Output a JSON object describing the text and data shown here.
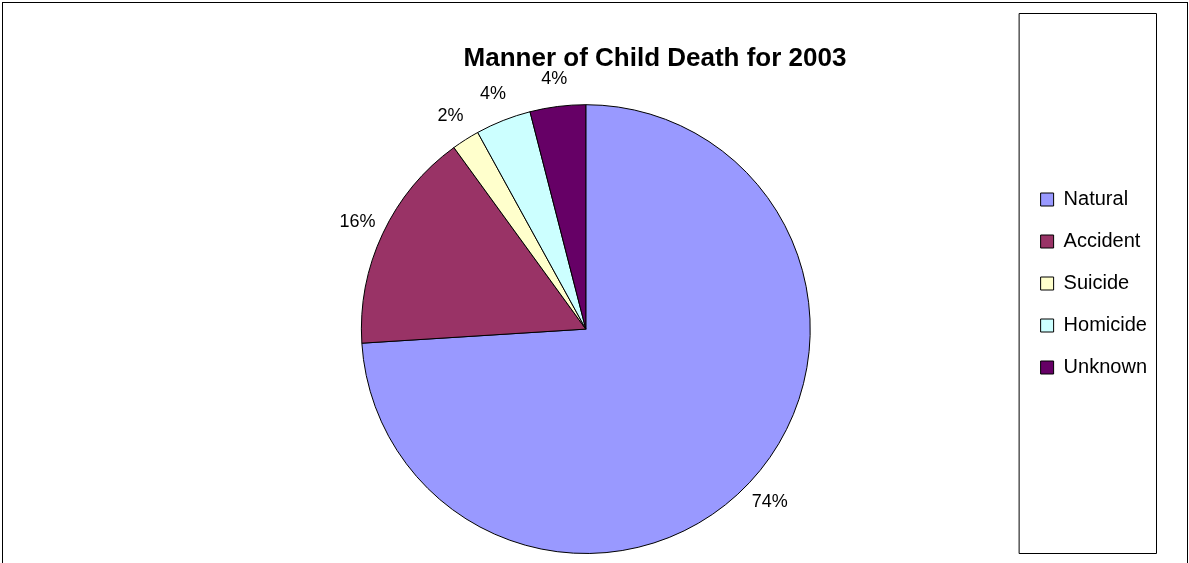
{
  "chart_data": {
    "type": "pie",
    "title": "Manner of Child Death for 2003",
    "categories": [
      "Natural",
      "Accident",
      "Suicide",
      "Homicide",
      "Unknown"
    ],
    "values": [
      74,
      16,
      2,
      4,
      4
    ],
    "value_labels": [
      "74%",
      "16%",
      "2%",
      "4%",
      "4%"
    ],
    "colors": [
      "#9999ff",
      "#993366",
      "#ffffcc",
      "#ccffff",
      "#660066"
    ],
    "legend": "right"
  }
}
